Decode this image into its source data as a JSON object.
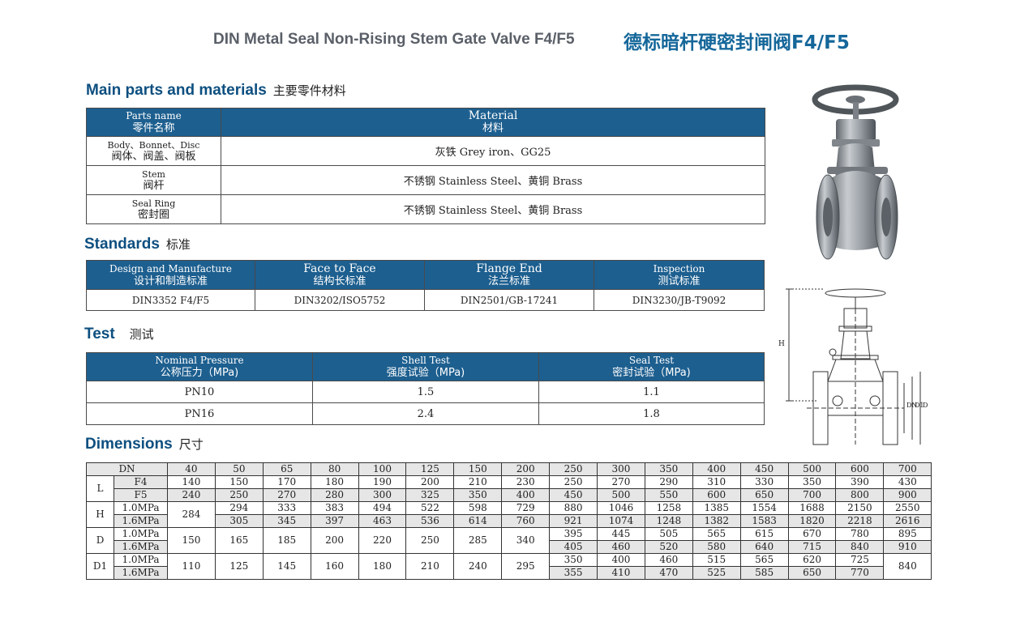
{
  "title": {
    "en": "DIN Metal Seal Non-Rising Stem Gate Valve F4/F5",
    "cn": "德标暗杆硬密封闸阀F4/F5"
  },
  "parts": {
    "heading_en": "Main parts and materials",
    "heading_cn": "主要零件材料",
    "col_part_en": "Parts name",
    "col_part_cn": "零件名称",
    "col_mat_en": "Material",
    "col_mat_cn": "材料",
    "rows": [
      {
        "part_en": "Body、Bonnet、Disc",
        "part_cn": "阀体、阀盖、阀板",
        "material": "灰铁 Grey iron、GG25"
      },
      {
        "part_en": "Stem",
        "part_cn": "阀杆",
        "material": "不锈钢 Stainless Steel、黄铜 Brass"
      },
      {
        "part_en": "Seal Ring",
        "part_cn": "密封圈",
        "material": "不锈钢 Stainless Steel、黄铜 Brass"
      }
    ]
  },
  "standards": {
    "heading_en": "Standards",
    "heading_cn": "标准",
    "cols": [
      {
        "en": "Design and Manufacture",
        "cn": "设计和制造标准",
        "value": "DIN3352 F4/F5"
      },
      {
        "en": "Face to Face",
        "cn": "结构长标准",
        "value": "DIN3202/ISO5752"
      },
      {
        "en": "Flange End",
        "cn": "法兰标准",
        "value": "DIN2501/GB-17241"
      },
      {
        "en": "Inspection",
        "cn": "测试标准",
        "value": "DIN3230/JB-T9092"
      }
    ]
  },
  "test": {
    "heading_en": "Test",
    "heading_cn": "测试",
    "cols": [
      {
        "en": "Nominal Pressure",
        "cn": "公称压力（MPa)"
      },
      {
        "en": "Shell Test",
        "cn": "强度试验（MPa)"
      },
      {
        "en": "Seal Test",
        "cn": "密封试验（MPa)"
      }
    ],
    "rows": [
      [
        "PN10",
        "1.5",
        "1.1"
      ],
      [
        "PN16",
        "2.4",
        "1.8"
      ]
    ]
  },
  "dimensions": {
    "heading_en": "Dimensions",
    "heading_cn": "尺寸",
    "dn_label": "DN",
    "dn": [
      "40",
      "50",
      "65",
      "80",
      "100",
      "125",
      "150",
      "200",
      "250",
      "300",
      "350",
      "400",
      "450",
      "500",
      "600",
      "700"
    ],
    "labels": {
      "L": "L",
      "H": "H",
      "D": "D",
      "D1": "D1",
      "F4": "F4",
      "F5": "F5",
      "p10": "1.0MPa",
      "p16": "1.6MPa"
    },
    "L_F4": [
      "140",
      "150",
      "170",
      "180",
      "190",
      "200",
      "210",
      "230",
      "250",
      "270",
      "290",
      "310",
      "330",
      "350",
      "390",
      "430"
    ],
    "L_F5": [
      "240",
      "250",
      "270",
      "280",
      "300",
      "325",
      "350",
      "400",
      "450",
      "500",
      "550",
      "600",
      "650",
      "700",
      "800",
      "900"
    ],
    "H_common": "284",
    "H_10": [
      "294",
      "333",
      "383",
      "494",
      "522",
      "598",
      "729",
      "880",
      "1046",
      "1258",
      "1385",
      "1554",
      "1688",
      "2150",
      "2550"
    ],
    "H_16": [
      "305",
      "345",
      "397",
      "463",
      "536",
      "614",
      "760",
      "921",
      "1074",
      "1248",
      "1382",
      "1583",
      "1820",
      "2218",
      "2616"
    ],
    "D_common": [
      "150",
      "165",
      "185",
      "200",
      "220",
      "250",
      "285",
      "340"
    ],
    "D_10": [
      "395",
      "445",
      "505",
      "565",
      "615",
      "670",
      "780",
      "895"
    ],
    "D_16": [
      "405",
      "460",
      "520",
      "580",
      "640",
      "715",
      "840",
      "910"
    ],
    "D1_common": [
      "110",
      "125",
      "145",
      "160",
      "180",
      "210",
      "240",
      "295"
    ],
    "D1_10": [
      "350",
      "400",
      "460",
      "515",
      "565",
      "620",
      "725"
    ],
    "D1_16": [
      "355",
      "410",
      "470",
      "525",
      "585",
      "650",
      "770"
    ],
    "D1_700": "840"
  },
  "drawing": {
    "h_label": "H",
    "dn_label": "DN",
    "d1_label": "D1",
    "d_label": "D"
  }
}
